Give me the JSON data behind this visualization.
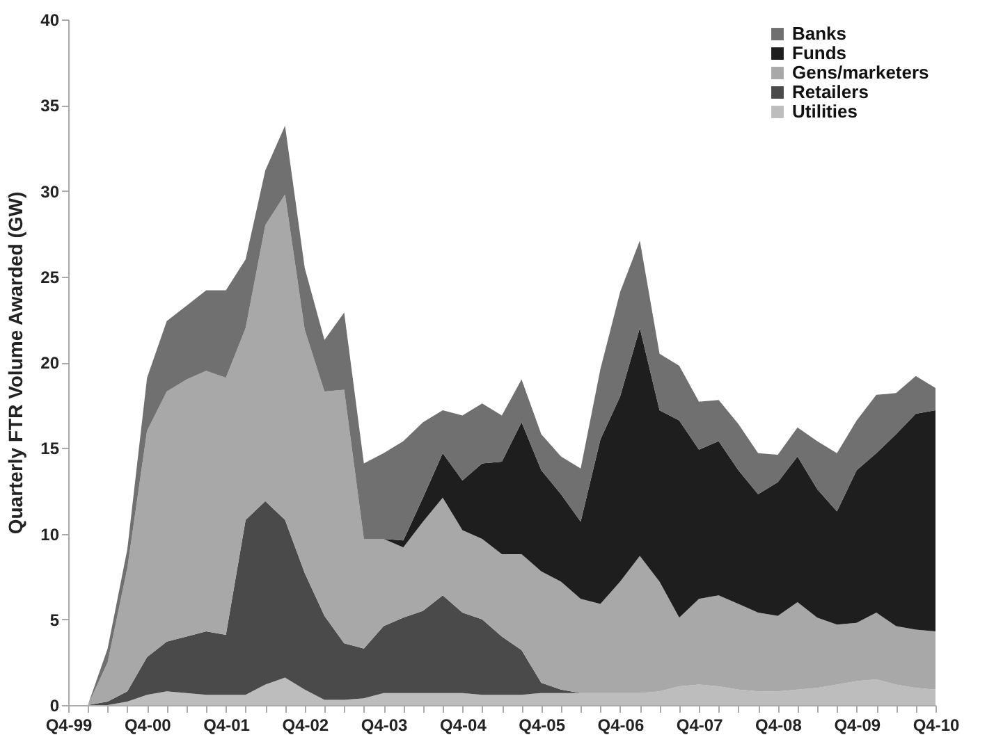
{
  "chart_data": {
    "type": "area",
    "stacked": true,
    "ylabel": "Quarterly FTR Volume Awarded (GW)",
    "categories": [
      "Q4-99",
      null,
      null,
      null,
      "Q4-00",
      null,
      null,
      null,
      "Q4-01",
      null,
      null,
      null,
      "Q4-02",
      null,
      null,
      null,
      "Q4-03",
      null,
      null,
      null,
      "Q4-04",
      null,
      null,
      null,
      "Q4-05",
      null,
      null,
      null,
      "Q4-06",
      null,
      null,
      null,
      "Q4-07",
      null,
      null,
      null,
      "Q4-08",
      null,
      null,
      null,
      "Q4-09",
      null,
      null,
      null,
      "Q4-10"
    ],
    "series": [
      {
        "name": "Utilities",
        "color": "#bdbdbd",
        "values": [
          0,
          0,
          0,
          0.2,
          0.6,
          0.8,
          0.7,
          0.6,
          0.6,
          0.6,
          1.2,
          1.6,
          0.9,
          0.3,
          0.3,
          0.4,
          0.7,
          0.7,
          0.7,
          0.7,
          0.7,
          0.6,
          0.6,
          0.6,
          0.7,
          0.7,
          0.7,
          0.7,
          0.7,
          0.7,
          0.8,
          1.1,
          1.2,
          1.1,
          0.9,
          0.8,
          0.8,
          0.9,
          1.0,
          1.2,
          1.4,
          1.5,
          1.2,
          1.0,
          0.9
        ]
      },
      {
        "name": "Retailers",
        "color": "#4a4a4a",
        "values": [
          0,
          0,
          0.2,
          0.6,
          2.2,
          2.9,
          3.3,
          3.7,
          3.5,
          10.2,
          10.7,
          9.2,
          6.8,
          4.9,
          3.3,
          2.9,
          3.9,
          4.4,
          4.8,
          5.7,
          4.7,
          4.4,
          3.4,
          2.6,
          0.6,
          0.2,
          0,
          0,
          0,
          0,
          0,
          0,
          0,
          0,
          0,
          0,
          0,
          0,
          0,
          0,
          0,
          0,
          0,
          0,
          0
        ]
      },
      {
        "name": "Gens/marketers",
        "color": "#a8a8a8",
        "values": [
          0,
          0,
          2.3,
          7.2,
          13.2,
          14.6,
          15.0,
          15.2,
          15.0,
          11.2,
          16.1,
          19.0,
          14.2,
          13.1,
          14.8,
          6.4,
          5.1,
          4.1,
          5.2,
          5.7,
          4.8,
          4.7,
          4.8,
          5.6,
          6.5,
          6.3,
          5.5,
          5.2,
          6.5,
          8.0,
          6.4,
          4.0,
          5.0,
          5.3,
          5.0,
          4.6,
          4.4,
          5.1,
          4.1,
          3.5,
          3.4,
          3.9,
          3.4,
          3.4,
          3.4
        ]
      },
      {
        "name": "Funds",
        "color": "#1e1e1e",
        "values": [
          null,
          null,
          null,
          null,
          null,
          null,
          null,
          null,
          null,
          null,
          null,
          null,
          null,
          null,
          null,
          null,
          0,
          0.4,
          1.4,
          2.6,
          2.9,
          4.4,
          5.4,
          7.7,
          5.9,
          5.1,
          4.5,
          9.6,
          10.8,
          13.3,
          10.0,
          11.5,
          8.7,
          9.0,
          7.8,
          6.9,
          7.8,
          8.5,
          7.5,
          6.6,
          8.9,
          9.3,
          11.2,
          12.6,
          12.9
        ]
      },
      {
        "name": "Banks",
        "color": "#707070",
        "values": [
          0,
          0,
          0.8,
          1.1,
          3.1,
          4.1,
          4.3,
          4.7,
          5.1,
          4.0,
          3.2,
          4.0,
          3.6,
          3.0,
          4.5,
          4.4,
          5.0,
          5.8,
          4.4,
          2.5,
          3.8,
          3.5,
          2.7,
          2.5,
          2.1,
          2.2,
          3.1,
          4.1,
          6.1,
          5.1,
          3.3,
          3.2,
          2.8,
          2.4,
          2.7,
          2.4,
          1.6,
          1.7,
          2.8,
          3.4,
          2.9,
          3.4,
          2.4,
          2.2,
          1.3
        ]
      }
    ],
    "ylim": [
      0,
      40
    ],
    "yticks": [
      0,
      5,
      10,
      15,
      20,
      25,
      30,
      35,
      40
    ],
    "grid": false,
    "legend": "top right"
  }
}
